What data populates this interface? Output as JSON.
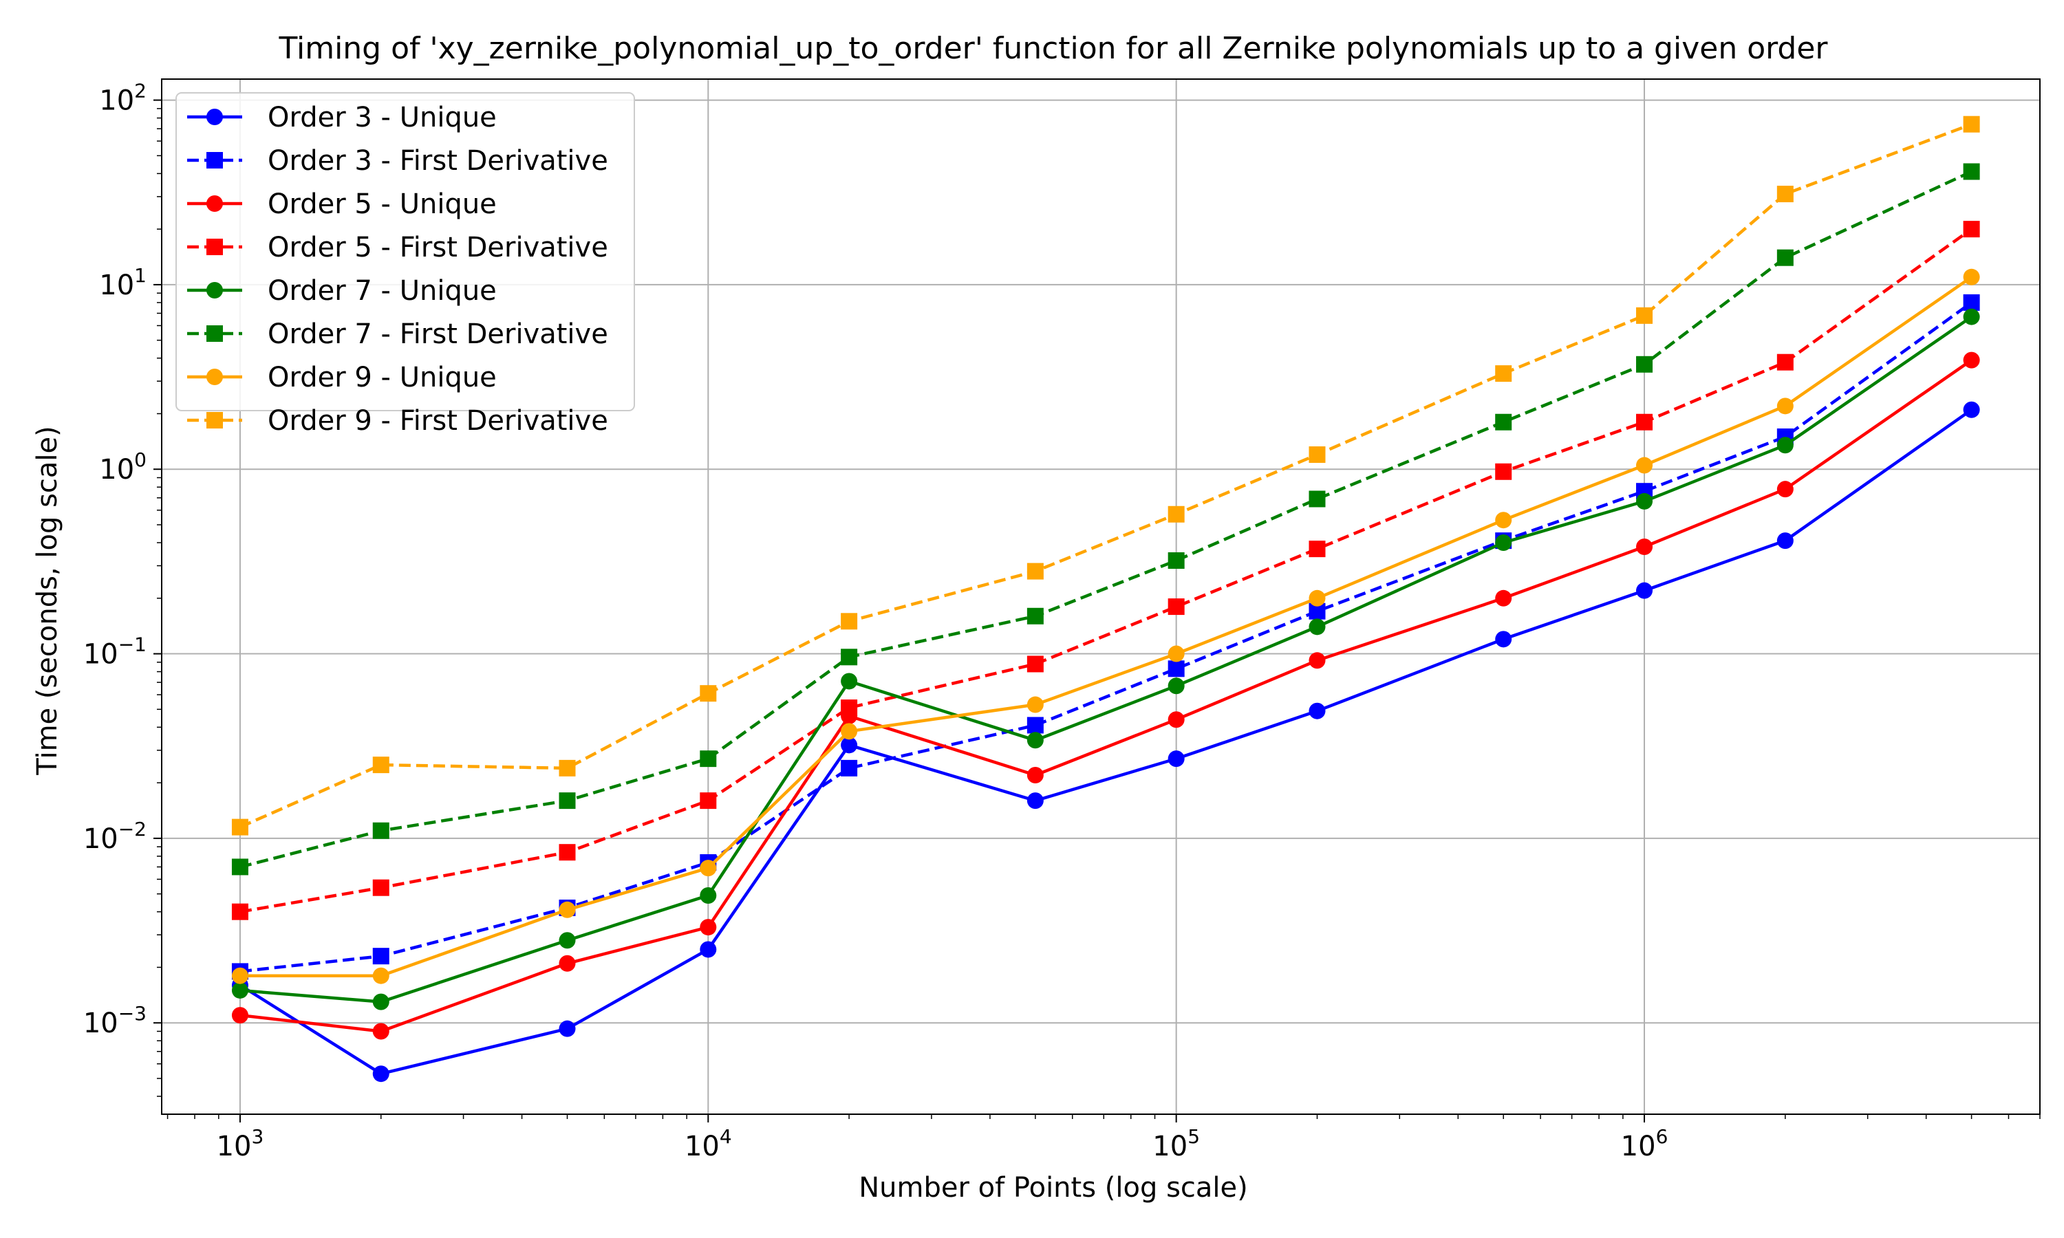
{
  "chart_data": {
    "type": "line",
    "title": "Timing of 'xy_zernike_polynomial_up_to_order' function for all Zernike polynomials up to a given order",
    "xlabel": "Number of Points (log scale)",
    "ylabel": "Time (seconds, log scale)",
    "xscale": "log",
    "yscale": "log",
    "xlim": [
      680,
      7000000
    ],
    "ylim": [
      0.00032,
      130
    ],
    "grid": true,
    "legend_position": "upper left",
    "x_ticks": [
      {
        "base": "10",
        "exp": "3",
        "value": 1000
      },
      {
        "base": "10",
        "exp": "4",
        "value": 10000
      },
      {
        "base": "10",
        "exp": "5",
        "value": 100000
      },
      {
        "base": "10",
        "exp": "6",
        "value": 1000000
      }
    ],
    "y_ticks": [
      {
        "base": "10",
        "exp": "−3",
        "value": 0.001
      },
      {
        "base": "10",
        "exp": "−2",
        "value": 0.01
      },
      {
        "base": "10",
        "exp": "−1",
        "value": 0.1
      },
      {
        "base": "10",
        "exp": "0",
        "value": 1
      },
      {
        "base": "10",
        "exp": "1",
        "value": 10
      },
      {
        "base": "10",
        "exp": "2",
        "value": 100
      }
    ],
    "x": [
      1000,
      2000,
      5000,
      10000,
      20000,
      50000,
      100000,
      200000,
      500000,
      1000000,
      2000000,
      5000000
    ],
    "series": [
      {
        "name": "Order 3 - Unique",
        "color": "#0000ff",
        "linestyle": "solid",
        "marker": "circle",
        "values": [
          0.0016,
          0.00053,
          0.00093,
          0.0025,
          0.032,
          0.016,
          0.027,
          0.049,
          0.12,
          0.22,
          0.41,
          2.1
        ]
      },
      {
        "name": "Order 3 - First Derivative",
        "color": "#0000ff",
        "linestyle": "dashed",
        "marker": "square",
        "values": [
          0.0019,
          0.0023,
          0.0042,
          0.0074,
          0.024,
          0.041,
          0.083,
          0.17,
          0.41,
          0.76,
          1.5,
          8.0
        ]
      },
      {
        "name": "Order 5 - Unique",
        "color": "#ff0000",
        "linestyle": "solid",
        "marker": "circle",
        "values": [
          0.0011,
          0.0009,
          0.0021,
          0.0033,
          0.046,
          0.022,
          0.044,
          0.092,
          0.2,
          0.38,
          0.78,
          3.9
        ]
      },
      {
        "name": "Order 5 - First Derivative",
        "color": "#ff0000",
        "linestyle": "dashed",
        "marker": "square",
        "values": [
          0.004,
          0.0054,
          0.0084,
          0.016,
          0.051,
          0.088,
          0.18,
          0.37,
          0.97,
          1.8,
          3.8,
          20
        ]
      },
      {
        "name": "Order 7 - Unique",
        "color": "#008000",
        "linestyle": "solid",
        "marker": "circle",
        "values": [
          0.0015,
          0.0013,
          0.0028,
          0.0049,
          0.071,
          0.034,
          0.067,
          0.14,
          0.4,
          0.67,
          1.35,
          6.7
        ]
      },
      {
        "name": "Order 7 - First Derivative",
        "color": "#008000",
        "linestyle": "dashed",
        "marker": "square",
        "values": [
          0.007,
          0.011,
          0.016,
          0.027,
          0.096,
          0.16,
          0.32,
          0.69,
          1.8,
          3.7,
          14,
          41
        ]
      },
      {
        "name": "Order 9 - Unique",
        "color": "#ffa500",
        "linestyle": "solid",
        "marker": "circle",
        "values": [
          0.0018,
          0.0018,
          0.0041,
          0.0069,
          0.038,
          0.053,
          0.1,
          0.2,
          0.53,
          1.05,
          2.2,
          11
        ]
      },
      {
        "name": "Order 9 - First Derivative",
        "color": "#ffa500",
        "linestyle": "dashed",
        "marker": "square",
        "values": [
          0.0115,
          0.025,
          0.024,
          0.061,
          0.15,
          0.28,
          0.57,
          1.2,
          3.3,
          6.8,
          31,
          74
        ]
      }
    ]
  }
}
